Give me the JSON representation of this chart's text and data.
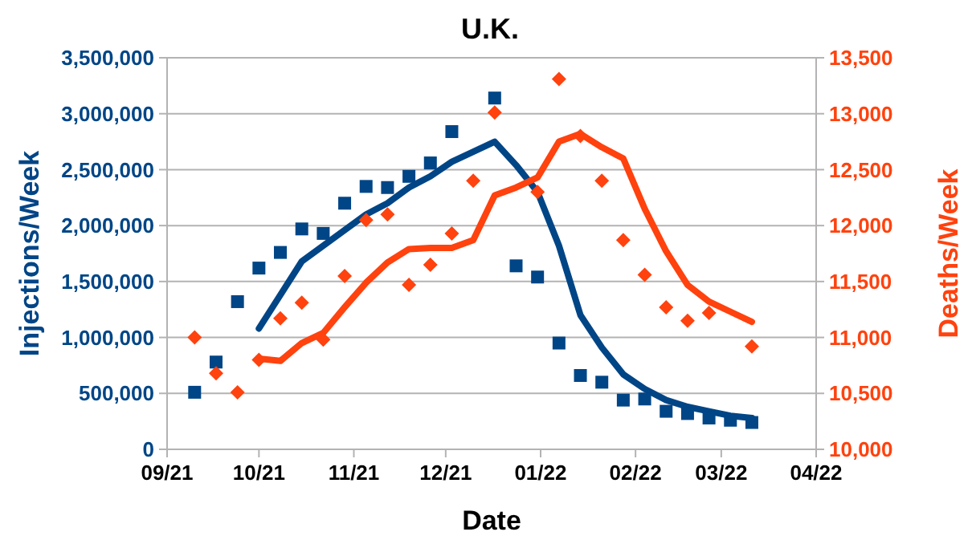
{
  "chart_data": {
    "type": "scatter",
    "title": "U.K.",
    "xlabel": "Date",
    "ylabel": "Injections/Week",
    "y2label": "Deaths/Week",
    "x": [
      "2021-09-10",
      "2021-09-17",
      "2021-09-24",
      "2021-10-01",
      "2021-10-08",
      "2021-10-15",
      "2021-10-22",
      "2021-10-29",
      "2021-11-05",
      "2021-11-12",
      "2021-11-19",
      "2021-11-26",
      "2021-12-03",
      "2021-12-10",
      "2021-12-17",
      "2021-12-24",
      "2021-12-31",
      "2022-01-07",
      "2022-01-14",
      "2022-01-21",
      "2022-01-28",
      "2022-02-04",
      "2022-02-11",
      "2022-02-18",
      "2022-02-25",
      "2022-03-04",
      "2022-03-11"
    ],
    "series": [
      {
        "marker": "square",
        "color": "#004586",
        "values": [
          510000,
          780000,
          1320000,
          1620000,
          1760000,
          1970000,
          1930000,
          2200000,
          2350000,
          2340000,
          2440000,
          2560000,
          2840000,
          null,
          3140000,
          1640000,
          1540000,
          950000,
          660000,
          600000,
          440000,
          450000,
          340000,
          320000,
          280000,
          260000,
          240000
        ]
      },
      {
        "type": "line",
        "color": "#004586",
        "values": [
          null,
          null,
          null,
          1080000,
          1380000,
          1680000,
          1820000,
          1960000,
          2100000,
          2200000,
          2340000,
          2440000,
          2570000,
          2660000,
          2750000,
          2540000,
          2300000,
          1820000,
          1200000,
          910000,
          670000,
          540000,
          440000,
          380000,
          340000,
          300000,
          280000
        ]
      },
      {
        "marker": "diamond",
        "axis": "y2",
        "color": "#ff420e",
        "values": [
          11000,
          10680,
          10510,
          10800,
          11170,
          11310,
          10980,
          11550,
          12050,
          12100,
          11470,
          11650,
          11930,
          12400,
          13010,
          null,
          12300,
          13310,
          12800,
          12400,
          11870,
          11560,
          11270,
          11150,
          11220,
          null,
          10920
        ]
      },
      {
        "type": "line",
        "axis": "y2",
        "color": "#ff420e",
        "values": [
          null,
          null,
          null,
          10810,
          10790,
          10950,
          11040,
          11270,
          11490,
          11670,
          11790,
          11800,
          11800,
          11870,
          12270,
          12340,
          12430,
          12750,
          12820,
          12700,
          12600,
          12150,
          11770,
          11470,
          11320,
          11230,
          11140
        ]
      }
    ],
    "xlim": [
      "2021-09-01",
      "2022-04-01"
    ],
    "xticks": [
      {
        "value": "2021-09-01",
        "label": "09/21"
      },
      {
        "value": "2021-10-01",
        "label": "10/21"
      },
      {
        "value": "2021-11-01",
        "label": "11/21"
      },
      {
        "value": "2021-12-01",
        "label": "12/21"
      },
      {
        "value": "2022-01-01",
        "label": "01/22"
      },
      {
        "value": "2022-02-01",
        "label": "02/22"
      },
      {
        "value": "2022-03-01",
        "label": "03/22"
      },
      {
        "value": "2022-04-01",
        "label": "04/22"
      }
    ],
    "ylim": [
      0,
      3500000
    ],
    "yticks": [
      {
        "value": 0,
        "label": "0"
      },
      {
        "value": 500000,
        "label": "500,000"
      },
      {
        "value": 1000000,
        "label": "1,000,000"
      },
      {
        "value": 1500000,
        "label": "1,500,000"
      },
      {
        "value": 2000000,
        "label": "2,000,000"
      },
      {
        "value": 2500000,
        "label": "2,500,000"
      },
      {
        "value": 3000000,
        "label": "3,000,000"
      },
      {
        "value": 3500000,
        "label": "3,500,000"
      }
    ],
    "y2lim": [
      10000,
      13500
    ],
    "y2ticks": [
      {
        "value": 10000,
        "label": "10,000"
      },
      {
        "value": 10500,
        "label": "10,500"
      },
      {
        "value": 11000,
        "label": "11,000"
      },
      {
        "value": 11500,
        "label": "11,500"
      },
      {
        "value": 12000,
        "label": "12,000"
      },
      {
        "value": 12500,
        "label": "12,500"
      },
      {
        "value": 13000,
        "label": "13,000"
      },
      {
        "value": 13500,
        "label": "13,500"
      }
    ],
    "grid": "y"
  }
}
